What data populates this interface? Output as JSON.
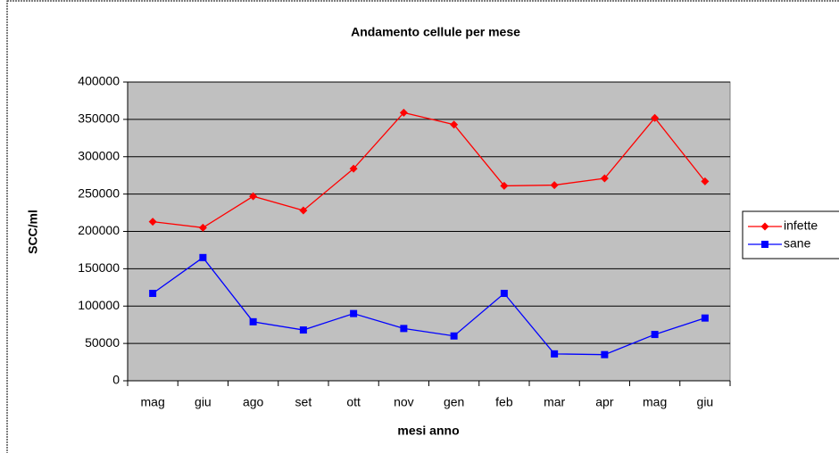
{
  "chart_data": {
    "type": "line",
    "title": "Andamento cellule per mese",
    "x_label": "mesi anno",
    "y_label": "SCC/ml",
    "categories": [
      "mag",
      "giu",
      "ago",
      "set",
      "ott",
      "nov",
      "gen",
      "feb",
      "mar",
      "apr",
      "mag",
      "giu"
    ],
    "series": [
      {
        "name": "infette",
        "color": "#ff0000",
        "marker": "diamond",
        "values": [
          213000,
          205000,
          247000,
          228000,
          284000,
          359000,
          343000,
          261000,
          262000,
          271000,
          352000,
          267000
        ]
      },
      {
        "name": "sane",
        "color": "#0000ff",
        "marker": "square",
        "values": [
          117000,
          165000,
          79000,
          68000,
          90000,
          70000,
          60000,
          117000,
          36000,
          35000,
          62000,
          84000
        ]
      }
    ],
    "ylim": [
      0,
      400000
    ],
    "yticks": [
      0,
      50000,
      100000,
      150000,
      200000,
      250000,
      300000,
      350000,
      400000
    ],
    "grid": true,
    "legend": "right"
  }
}
